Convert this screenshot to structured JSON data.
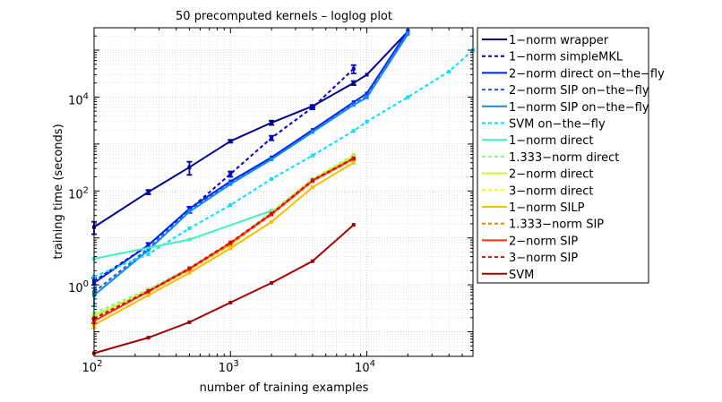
{
  "chart_data": {
    "type": "line",
    "title": "50 precomputed kernels – loglog plot",
    "xlabel": "number of training examples",
    "ylabel": "training time (seconds)",
    "xscale": "log",
    "yscale": "log",
    "xlim": [
      100,
      60000
    ],
    "ylim": [
      0.03,
      300000
    ],
    "x_ticks": [
      {
        "value": 100,
        "base": "10",
        "exp": "2"
      },
      {
        "value": 1000,
        "base": "10",
        "exp": "3"
      },
      {
        "value": 10000,
        "base": "10",
        "exp": "4"
      }
    ],
    "y_ticks": [
      {
        "value": 1,
        "base": "10",
        "exp": "0"
      },
      {
        "value": 100,
        "base": "10",
        "exp": "2"
      },
      {
        "value": 10000,
        "base": "10",
        "exp": "4"
      }
    ],
    "grid": true,
    "legend_position": "outside-right",
    "series": [
      {
        "name": "1−norm wrapper",
        "color": "#00008f",
        "dash": "solid",
        "x": [
          100,
          250,
          500,
          1000,
          2000,
          4000,
          8000,
          10000,
          20000
        ],
        "y": [
          17,
          95,
          320,
          1150,
          2850,
          6400,
          20000,
          30000,
          250000
        ],
        "err": [
          5,
          10,
          100,
          80,
          300,
          400,
          2000,
          0,
          0
        ]
      },
      {
        "name": "1−norm simpleMKL",
        "color": "#0000cc",
        "dash": "dash",
        "x": [
          100,
          250,
          500,
          1000,
          2000,
          4000,
          8000
        ],
        "y": [
          1.2,
          7,
          40,
          230,
          1350,
          6000,
          40000
        ],
        "err": [
          0.2,
          0.8,
          6,
          30,
          150,
          500,
          8000
        ]
      },
      {
        "name": "2−norm direct on−the−fly",
        "color": "#0022ff",
        "dash": "solid",
        "x": [
          100,
          250,
          500,
          1000,
          2000,
          4000,
          8000,
          10000,
          20000
        ],
        "y": [
          1.1,
          7,
          42,
          160,
          520,
          2000,
          7800,
          12000,
          260000
        ],
        "err": [
          0,
          0,
          0,
          0,
          0,
          0,
          0,
          0,
          0
        ]
      },
      {
        "name": "2−norm SIP on−the−fly",
        "color": "#2255ff",
        "dash": "dash",
        "x": [
          100,
          250,
          500,
          1000,
          2000,
          4000,
          8000,
          10000,
          20000
        ],
        "y": [
          0.7,
          6,
          38,
          145,
          480,
          1850,
          7000,
          10500,
          240000
        ],
        "err": [
          0,
          0,
          0,
          0,
          0,
          0,
          0,
          0,
          0
        ]
      },
      {
        "name": "1−norm SIP on−the−fly",
        "color": "#0a8fe0",
        "dash": "solid",
        "x": [
          100,
          250,
          500,
          1000,
          2000,
          4000,
          8000,
          10000,
          20000
        ],
        "y": [
          0.6,
          5.5,
          36,
          140,
          470,
          1800,
          6800,
          9800,
          220000
        ],
        "err": [
          0.25,
          0,
          0,
          0,
          0,
          0,
          0,
          0,
          0
        ]
      },
      {
        "name": "SVM on−the−fly",
        "color": "#00e0ff",
        "dash": "dash",
        "x": [
          100,
          250,
          500,
          1000,
          2000,
          4000,
          8000,
          10000,
          20000,
          40000,
          60000
        ],
        "y": [
          1.5,
          4.5,
          16,
          50,
          180,
          570,
          1900,
          3000,
          10000,
          35000,
          100000
        ],
        "err": [
          0,
          0,
          0,
          0,
          0,
          0,
          0,
          0,
          0,
          0,
          0
        ]
      },
      {
        "name": "1−norm direct",
        "color": "#3ff0c0",
        "dash": "solid",
        "x": [
          100,
          500,
          2000
        ],
        "y": [
          3.6,
          9.2,
          38
        ],
        "err": [
          0,
          0,
          0
        ]
      },
      {
        "name": "1.333−norm direct",
        "color": "#80ff80",
        "dash": "dash",
        "x": [
          100,
          250,
          500,
          1000,
          2000,
          4000,
          8000
        ],
        "y": [
          0.25,
          0.8,
          2.3,
          7.5,
          36,
          180,
          580
        ],
        "err": [
          0,
          0,
          0,
          0,
          0,
          0,
          0
        ]
      },
      {
        "name": "2−norm direct",
        "color": "#c0ff30",
        "dash": "solid",
        "x": [
          100,
          250,
          500,
          1000,
          2000,
          4000,
          8000
        ],
        "y": [
          0.22,
          0.75,
          2.2,
          7.2,
          34,
          175,
          550
        ],
        "err": [
          0,
          0,
          0,
          0,
          0,
          0,
          0
        ]
      },
      {
        "name": "3−norm direct",
        "color": "#ffff00",
        "dash": "dash",
        "x": [
          100,
          250,
          500,
          1000,
          2000,
          4000,
          8000
        ],
        "y": [
          0.2,
          0.7,
          2.1,
          7,
          33,
          170,
          520
        ],
        "err": [
          0,
          0,
          0,
          0,
          0,
          0,
          0
        ]
      },
      {
        "name": "1−norm SILP",
        "color": "#ffbb00",
        "dash": "solid",
        "x": [
          100,
          250,
          500,
          1000,
          2000,
          4000,
          8000
        ],
        "y": [
          0.14,
          0.6,
          1.8,
          6,
          22,
          120,
          400
        ],
        "err": [
          0.02,
          0,
          0,
          0,
          0,
          0,
          0
        ]
      },
      {
        "name": "1.333−norm SIP",
        "color": "#ff8000",
        "dash": "dash",
        "x": [
          100,
          250,
          500,
          1000,
          2000,
          4000,
          8000
        ],
        "y": [
          0.2,
          0.7,
          2.1,
          7.3,
          31,
          160,
          470
        ],
        "err": [
          0,
          0,
          0,
          0,
          0,
          0,
          0
        ]
      },
      {
        "name": "2−norm SIP",
        "color": "#ff3300",
        "dash": "solid",
        "x": [
          100,
          250,
          500,
          1000,
          2000,
          4000,
          8000
        ],
        "y": [
          0.17,
          0.72,
          2.2,
          7.8,
          32,
          165,
          490
        ],
        "err": [
          0.02,
          0,
          0,
          0,
          0,
          0,
          0
        ]
      },
      {
        "name": "3−norm SIP",
        "color": "#e00000",
        "dash": "dash",
        "x": [
          100,
          250,
          500,
          1000,
          2000,
          4000,
          8000
        ],
        "y": [
          0.19,
          0.74,
          2.25,
          8,
          33,
          170,
          500
        ],
        "err": [
          0,
          0,
          0,
          0,
          0,
          0,
          0
        ]
      },
      {
        "name": "SVM",
        "color": "#a00000",
        "dash": "solid",
        "x": [
          100,
          250,
          500,
          1000,
          2000,
          4000,
          8000
        ],
        "y": [
          0.035,
          0.075,
          0.16,
          0.42,
          1.1,
          3.2,
          19
        ],
        "err": [
          0,
          0,
          0,
          0,
          0,
          0,
          0
        ]
      }
    ]
  }
}
